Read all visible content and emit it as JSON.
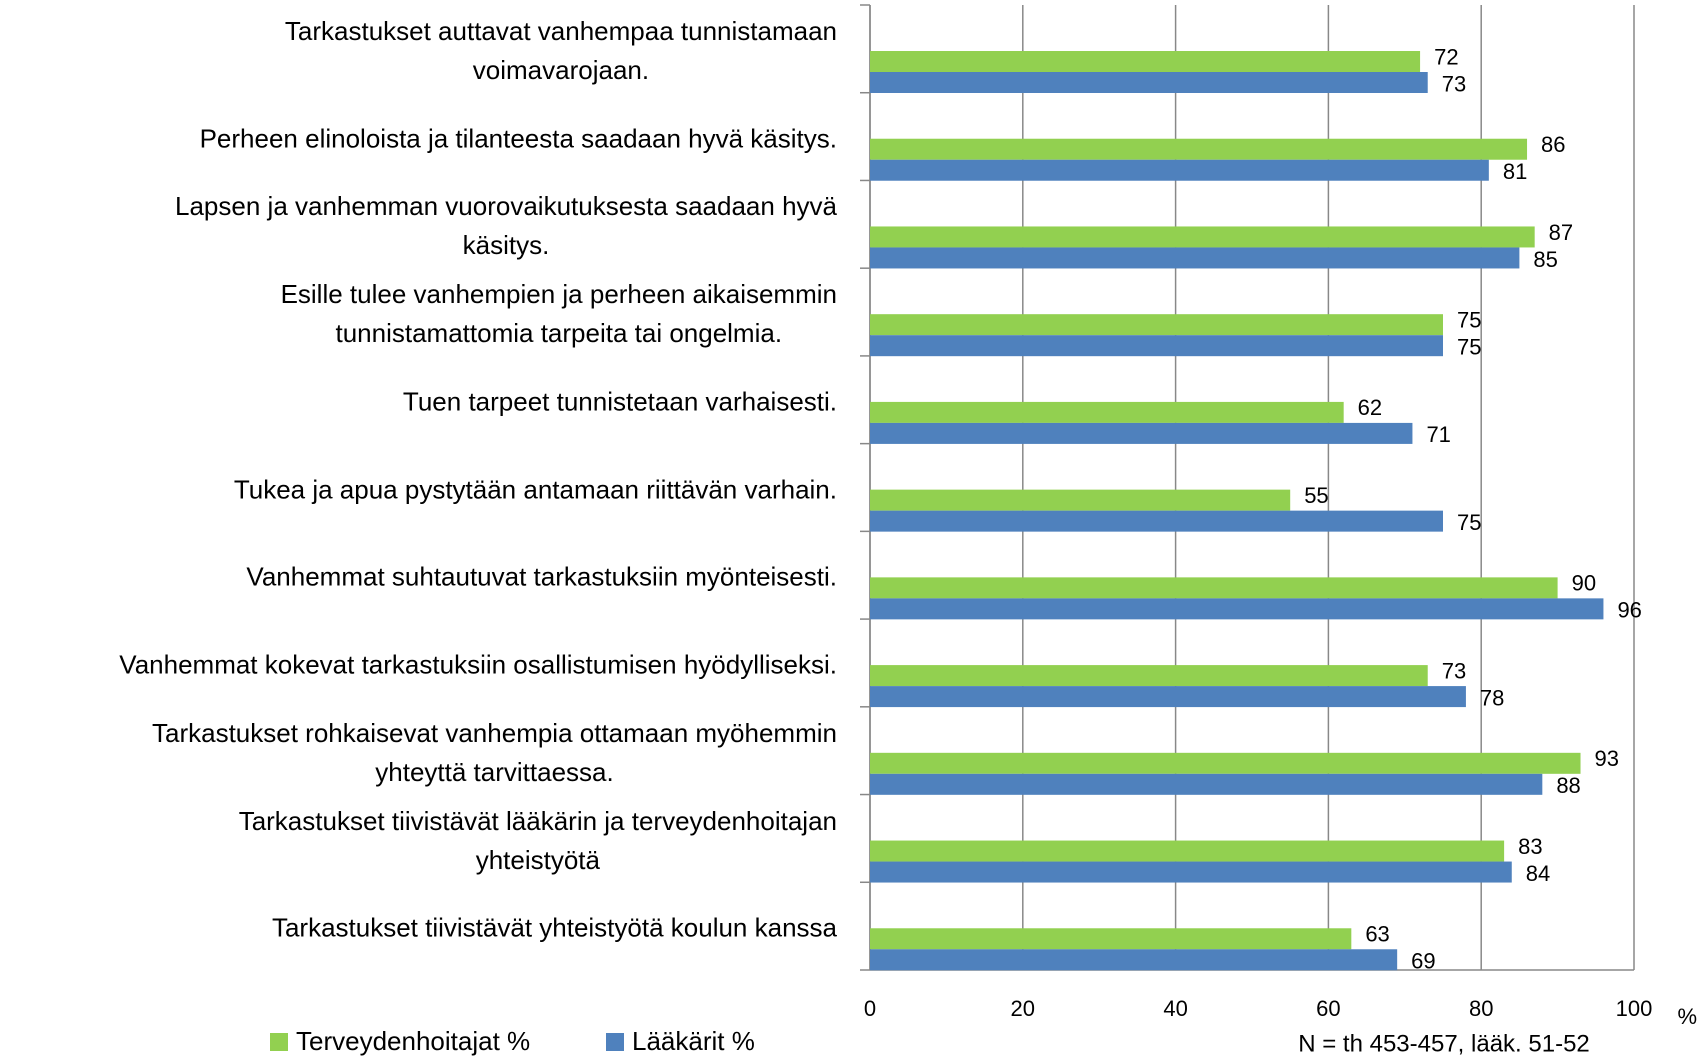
{
  "chart_data": {
    "type": "bar",
    "orientation": "horizontal",
    "categories": [
      "Tarkastukset auttavat vanhempaa tunnistamaan\nvoimavarojaan.",
      "Perheen elinoloista ja tilanteesta saadaan hyvä käsitys.",
      "Lapsen ja vanhemman vuorovaikutuksesta saadaan hyvä\nkäsitys.",
      "Esille tulee vanhempien ja perheen aikaisemmin\ntunnistamattomia tarpeita tai ongelmia.",
      "Tuen tarpeet tunnistetaan varhaisesti.",
      "Tukea ja apua pystytään antamaan riittävän varhain.",
      "Vanhemmat suhtautuvat tarkastuksiin myönteisesti.",
      "Vanhemmat kokevat tarkastuksiin osallistumisen hyödylliseksi.",
      "Tarkastukset rohkaisevat vanhempia ottamaan myöhemmin\nyhteyttä tarvittaessa.",
      "Tarkastukset tiivistävät lääkärin ja terveydenhoitajan\nyhteistyötä",
      "Tarkastukset tiivistävät yhteistyötä koulun kanssa"
    ],
    "series": [
      {
        "name": "Terveydenhoitajat %",
        "color": "#92d050",
        "values": [
          72,
          86,
          87,
          75,
          62,
          55,
          90,
          73,
          93,
          83,
          63
        ]
      },
      {
        "name": "Lääkärit %",
        "color": "#4f81bd",
        "values": [
          73,
          81,
          85,
          75,
          71,
          75,
          96,
          78,
          88,
          84,
          69
        ]
      }
    ],
    "xlim": [
      0,
      100
    ],
    "xticks": [
      0,
      20,
      40,
      60,
      80,
      100
    ],
    "xlabel": "%",
    "grid": true,
    "legend": "bottom",
    "note": "N = th 453-457, lääk. 51-52"
  }
}
